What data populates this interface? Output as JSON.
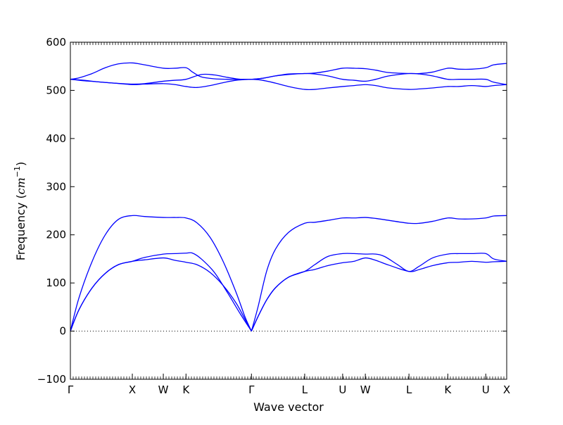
{
  "chart_data": {
    "type": "line",
    "title": "",
    "xlabel": "Wave vector",
    "ylabel_text": "Frequency (",
    "ylabel_unit": "cm",
    "ylabel_exp": "−1",
    "ylabel_close": ")",
    "ylim": [
      -100,
      600
    ],
    "yticks": [
      -100,
      0,
      100,
      200,
      300,
      400,
      500,
      600
    ],
    "xlim": [
      0,
      1
    ],
    "grid": false,
    "line_color": "#0000ff",
    "zero_line": {
      "y": 0,
      "style": "dotted",
      "color": "#000000"
    },
    "kpoints": [
      {
        "label": "Γ",
        "x": 0.0
      },
      {
        "label": "X",
        "x": 0.142
      },
      {
        "label": "W",
        "x": 0.213
      },
      {
        "label": "K",
        "x": 0.265
      },
      {
        "label": "Γ",
        "x": 0.415
      },
      {
        "label": "L",
        "x": 0.537
      },
      {
        "label": "U",
        "x": 0.624
      },
      {
        "label": "W",
        "x": 0.676
      },
      {
        "label": "L",
        "x": 0.776
      },
      {
        "label": "K",
        "x": 0.865
      },
      {
        "label": "U",
        "x": 0.952
      },
      {
        "label": "X",
        "x": 1.0
      }
    ],
    "series": [
      {
        "x": [
          0.0,
          0.02,
          0.05,
          0.08,
          0.11,
          0.142,
          0.17,
          0.213,
          0.24,
          0.265,
          0.29,
          0.32,
          0.35,
          0.38,
          0.4,
          0.415
        ],
        "y": [
          0,
          45,
          90,
          120,
          138,
          145,
          148,
          152,
          147,
          143,
          138,
          122,
          95,
          58,
          25,
          0
        ]
      },
      {
        "x": [
          0.0,
          0.02,
          0.05,
          0.08,
          0.11,
          0.142,
          0.17,
          0.213,
          0.24,
          0.265,
          0.28,
          0.3,
          0.33,
          0.36,
          0.39,
          0.415
        ],
        "y": [
          0,
          45,
          90,
          120,
          138,
          145,
          153,
          160,
          161,
          162,
          162,
          150,
          122,
          80,
          35,
          0
        ]
      },
      {
        "x": [
          0.0,
          0.02,
          0.05,
          0.08,
          0.11,
          0.142,
          0.17,
          0.213,
          0.24,
          0.265,
          0.29,
          0.32,
          0.35,
          0.38,
          0.4,
          0.415
        ],
        "y": [
          0,
          70,
          145,
          200,
          232,
          240,
          238,
          236,
          236,
          235,
          225,
          195,
          145,
          80,
          30,
          0
        ]
      },
      {
        "x": [
          0.0,
          0.03,
          0.06,
          0.1,
          0.142,
          0.17,
          0.213,
          0.24,
          0.265,
          0.29,
          0.32,
          0.35,
          0.38,
          0.415
        ],
        "y": [
          523,
          520,
          518,
          515,
          512,
          513,
          514,
          512,
          508,
          506,
          510,
          516,
          521,
          523
        ]
      },
      {
        "x": [
          0.0,
          0.03,
          0.06,
          0.1,
          0.142,
          0.17,
          0.213,
          0.24,
          0.265,
          0.3,
          0.33,
          0.36,
          0.39,
          0.415
        ],
        "y": [
          523,
          521,
          518,
          515,
          513,
          514,
          519,
          521,
          523,
          533,
          532,
          527,
          523,
          523
        ]
      },
      {
        "x": [
          0.0,
          0.02,
          0.05,
          0.08,
          0.11,
          0.142,
          0.17,
          0.213,
          0.24,
          0.265,
          0.28,
          0.3,
          0.33,
          0.36,
          0.39,
          0.415
        ],
        "y": [
          523,
          526,
          535,
          547,
          555,
          557,
          553,
          546,
          546,
          547,
          538,
          528,
          524,
          523,
          523,
          523
        ]
      },
      {
        "x": [
          0.415,
          0.43,
          0.45,
          0.47,
          0.5,
          0.537,
          0.56,
          0.59,
          0.624,
          0.65,
          0.676,
          0.7,
          0.73,
          0.776,
          0.8,
          0.83,
          0.865,
          0.89,
          0.92,
          0.952,
          0.97,
          1.0
        ],
        "y": [
          0,
          50,
          125,
          170,
          205,
          224,
          226,
          230,
          235,
          235,
          236,
          234,
          230,
          224,
          224,
          228,
          235,
          233,
          233,
          235,
          239,
          240
        ]
      },
      {
        "x": [
          0.415,
          0.43,
          0.45,
          0.47,
          0.5,
          0.537,
          0.56,
          0.59,
          0.624,
          0.65,
          0.676,
          0.7,
          0.72,
          0.75,
          0.776,
          0.8,
          0.83,
          0.865,
          0.89,
          0.92,
          0.952,
          0.97,
          1.0
        ],
        "y": [
          0,
          30,
          65,
          90,
          112,
          124,
          138,
          155,
          161,
          161,
          160,
          160,
          155,
          138,
          124,
          135,
          152,
          160,
          161,
          161,
          161,
          150,
          145
        ]
      },
      {
        "x": [
          0.415,
          0.43,
          0.45,
          0.47,
          0.5,
          0.537,
          0.56,
          0.59,
          0.624,
          0.65,
          0.676,
          0.7,
          0.73,
          0.776,
          0.8,
          0.83,
          0.865,
          0.89,
          0.92,
          0.952,
          0.97,
          1.0
        ],
        "y": [
          0,
          30,
          65,
          90,
          112,
          124,
          128,
          136,
          142,
          145,
          152,
          147,
          137,
          124,
          128,
          136,
          142,
          143,
          145,
          143,
          144,
          145
        ]
      },
      {
        "x": [
          0.415,
          0.44,
          0.47,
          0.5,
          0.537,
          0.56,
          0.59,
          0.624,
          0.65,
          0.676,
          0.7,
          0.73,
          0.776,
          0.8,
          0.83,
          0.865,
          0.89,
          0.92,
          0.952,
          0.97,
          1.0
        ],
        "y": [
          523,
          521,
          515,
          508,
          502,
          502,
          505,
          508,
          510,
          512,
          510,
          505,
          502,
          503,
          505,
          508,
          508,
          510,
          508,
          510,
          512
        ]
      },
      {
        "x": [
          0.415,
          0.44,
          0.47,
          0.5,
          0.537,
          0.56,
          0.59,
          0.624,
          0.65,
          0.676,
          0.7,
          0.73,
          0.776,
          0.8,
          0.83,
          0.865,
          0.89,
          0.92,
          0.952,
          0.97,
          1.0
        ],
        "y": [
          523,
          525,
          530,
          533,
          535,
          534,
          530,
          523,
          521,
          519,
          523,
          530,
          535,
          534,
          530,
          523,
          523,
          523,
          523,
          517,
          512
        ]
      },
      {
        "x": [
          0.415,
          0.44,
          0.47,
          0.5,
          0.537,
          0.56,
          0.59,
          0.624,
          0.65,
          0.676,
          0.7,
          0.73,
          0.776,
          0.8,
          0.83,
          0.865,
          0.89,
          0.92,
          0.952,
          0.97,
          1.0
        ],
        "y": [
          523,
          525,
          530,
          534,
          535,
          536,
          540,
          546,
          546,
          545,
          542,
          537,
          535,
          535,
          538,
          546,
          544,
          544,
          547,
          553,
          556
        ]
      }
    ]
  }
}
